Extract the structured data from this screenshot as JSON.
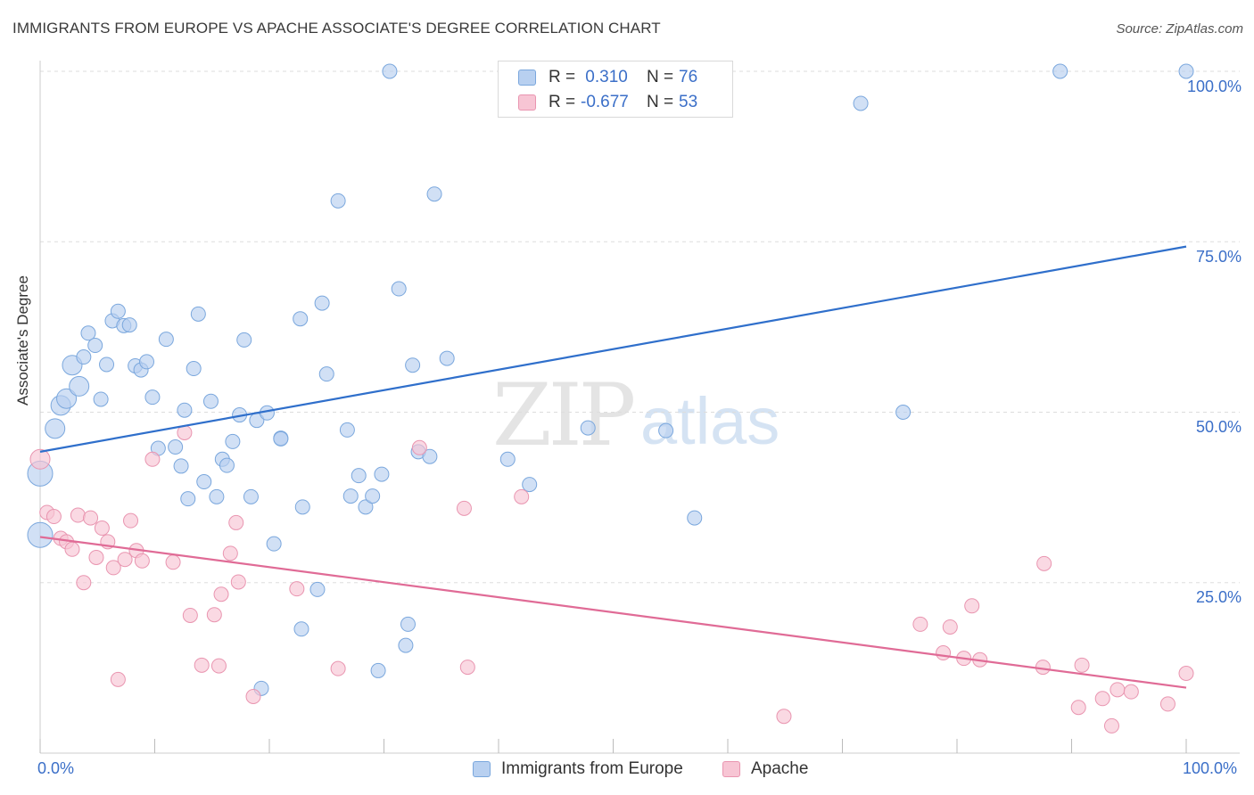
{
  "title": "IMMIGRANTS FROM EUROPE VS APACHE ASSOCIATE'S DEGREE CORRELATION CHART",
  "source": "Source: ZipAtlas.com",
  "watermark": {
    "zip": "ZIP",
    "atlas": "atlas"
  },
  "colors": {
    "blue_fill": "#b8d0f0",
    "blue_stroke": "#7aa7dd",
    "blue_line": "#2f6fcb",
    "pink_fill": "#f7c5d4",
    "pink_stroke": "#e995b0",
    "pink_line": "#e06b96",
    "grid": "#dddddd",
    "axis_text": "#3b6fc8"
  },
  "legend": {
    "rows": [
      {
        "r_label": "R =",
        "r_value": " 0.310",
        "n_label": "N =",
        "n_value": "76"
      },
      {
        "r_label": "R =",
        "r_value": "-0.677",
        "n_label": "N =",
        "n_value": "53"
      }
    ]
  },
  "chart_data": {
    "type": "scatter",
    "title": "IMMIGRANTS FROM EUROPE VS APACHE ASSOCIATE'S DEGREE CORRELATION CHART",
    "xlabel": "",
    "ylabel": "Associate's Degree",
    "xlim": [
      0,
      100
    ],
    "ylim": [
      0,
      100
    ],
    "x_tick_labels": [
      "0.0%",
      "100.0%"
    ],
    "y_tick_labels": [
      "25.0%",
      "50.0%",
      "75.0%",
      "100.0%"
    ],
    "y_ticks": [
      25,
      50,
      75,
      100
    ],
    "grid": "horizontal dashed",
    "legend_placement": "bottom-center",
    "series": [
      {
        "name": "Immigrants from Europe",
        "trend": {
          "x": [
            0,
            100
          ],
          "y": [
            44.2,
            74.3
          ]
        },
        "points": [
          [
            0,
            41.0,
            3
          ],
          [
            0,
            32.0,
            3
          ],
          [
            1.3,
            47.6,
            2
          ],
          [
            1.8,
            51.0,
            2
          ],
          [
            2.3,
            52.0,
            2
          ],
          [
            2.8,
            56.9,
            2
          ],
          [
            3.4,
            53.8,
            2
          ],
          [
            3.8,
            58.1,
            1
          ],
          [
            4.2,
            61.6,
            1
          ],
          [
            4.8,
            59.8,
            1
          ],
          [
            5.3,
            51.9,
            1
          ],
          [
            5.8,
            57.0,
            1
          ],
          [
            6.3,
            63.4,
            1
          ],
          [
            6.8,
            64.8,
            1
          ],
          [
            7.3,
            62.7,
            1
          ],
          [
            7.8,
            62.8,
            1
          ],
          [
            8.3,
            56.8,
            1
          ],
          [
            8.8,
            56.2,
            1
          ],
          [
            9.3,
            57.4,
            1
          ],
          [
            9.8,
            52.2,
            1
          ],
          [
            10.3,
            44.7,
            1
          ],
          [
            11.0,
            60.7,
            1
          ],
          [
            11.8,
            44.9,
            1
          ],
          [
            12.3,
            42.1,
            1
          ],
          [
            12.6,
            50.3,
            1
          ],
          [
            12.9,
            37.3,
            1
          ],
          [
            13.4,
            56.4,
            1
          ],
          [
            13.8,
            64.4,
            1
          ],
          [
            14.3,
            39.8,
            1
          ],
          [
            14.9,
            51.6,
            1
          ],
          [
            15.4,
            37.6,
            1
          ],
          [
            15.9,
            43.1,
            1
          ],
          [
            16.3,
            42.2,
            1
          ],
          [
            16.8,
            45.7,
            1
          ],
          [
            17.4,
            49.6,
            1
          ],
          [
            17.8,
            60.6,
            1
          ],
          [
            18.4,
            37.6,
            1
          ],
          [
            18.9,
            48.8,
            1
          ],
          [
            19.3,
            9.5,
            1
          ],
          [
            19.8,
            49.9,
            1
          ],
          [
            20.4,
            30.7,
            1
          ],
          [
            21.0,
            46.2,
            1
          ],
          [
            21.0,
            46.1,
            1
          ],
          [
            22.7,
            63.7,
            1
          ],
          [
            22.8,
            18.2,
            1
          ],
          [
            22.9,
            36.1,
            1
          ],
          [
            24.2,
            24.0,
            1
          ],
          [
            24.6,
            66.0,
            1
          ],
          [
            25.0,
            55.6,
            1
          ],
          [
            26.0,
            81.0,
            1
          ],
          [
            26.8,
            47.4,
            1
          ],
          [
            27.1,
            37.7,
            1
          ],
          [
            27.8,
            40.7,
            1
          ],
          [
            28.4,
            36.1,
            1
          ],
          [
            29.0,
            37.7,
            1
          ],
          [
            29.5,
            12.1,
            1
          ],
          [
            29.8,
            40.9,
            1
          ],
          [
            30.5,
            100.0,
            1
          ],
          [
            31.3,
            68.1,
            1
          ],
          [
            31.9,
            15.8,
            1
          ],
          [
            32.1,
            18.9,
            1
          ],
          [
            32.5,
            56.9,
            1
          ],
          [
            33.0,
            44.2,
            1
          ],
          [
            34.0,
            43.5,
            1
          ],
          [
            34.4,
            82.0,
            1
          ],
          [
            35.5,
            57.9,
            1
          ],
          [
            40.8,
            43.1,
            1
          ],
          [
            42.7,
            39.4,
            1
          ],
          [
            47.8,
            47.7,
            1
          ],
          [
            54.6,
            47.3,
            1
          ],
          [
            57.1,
            34.5,
            1
          ],
          [
            71.6,
            95.3,
            1
          ],
          [
            75.3,
            50.0,
            1
          ],
          [
            89.0,
            100.0,
            1
          ],
          [
            100.0,
            100.0,
            1
          ]
        ]
      },
      {
        "name": "Apache",
        "trend": {
          "x": [
            0,
            100
          ],
          "y": [
            31.7,
            9.6
          ]
        },
        "points": [
          [
            0,
            43.1,
            2
          ],
          [
            0.6,
            35.3,
            1
          ],
          [
            1.2,
            34.7,
            1
          ],
          [
            1.8,
            31.5,
            1
          ],
          [
            2.3,
            31.0,
            1
          ],
          [
            2.8,
            29.9,
            1
          ],
          [
            3.3,
            34.9,
            1
          ],
          [
            3.8,
            25.0,
            1
          ],
          [
            4.4,
            34.5,
            1
          ],
          [
            4.9,
            28.7,
            1
          ],
          [
            5.4,
            33.0,
            1
          ],
          [
            5.9,
            31.0,
            1
          ],
          [
            6.4,
            27.2,
            1
          ],
          [
            6.8,
            10.8,
            1
          ],
          [
            7.4,
            28.4,
            1
          ],
          [
            7.9,
            34.1,
            1
          ],
          [
            8.4,
            29.7,
            1
          ],
          [
            8.9,
            28.2,
            1
          ],
          [
            9.8,
            43.1,
            1
          ],
          [
            11.6,
            28.0,
            1
          ],
          [
            12.6,
            47.0,
            1
          ],
          [
            13.1,
            20.2,
            1
          ],
          [
            14.1,
            12.9,
            1
          ],
          [
            15.2,
            20.3,
            1
          ],
          [
            15.6,
            12.8,
            1
          ],
          [
            15.8,
            23.3,
            1
          ],
          [
            16.6,
            29.3,
            1
          ],
          [
            17.1,
            33.8,
            1
          ],
          [
            17.3,
            25.1,
            1
          ],
          [
            18.6,
            8.3,
            1
          ],
          [
            22.4,
            24.1,
            1
          ],
          [
            26.0,
            12.4,
            1
          ],
          [
            33.1,
            44.8,
            1
          ],
          [
            37.0,
            35.9,
            1
          ],
          [
            37.3,
            12.6,
            1
          ],
          [
            42.0,
            37.6,
            1
          ],
          [
            64.9,
            5.4,
            1
          ],
          [
            76.8,
            18.9,
            1
          ],
          [
            78.8,
            14.7,
            1
          ],
          [
            79.4,
            18.5,
            1
          ],
          [
            80.6,
            13.9,
            1
          ],
          [
            81.3,
            21.6,
            1
          ],
          [
            82.0,
            13.7,
            1
          ],
          [
            87.5,
            12.6,
            1
          ],
          [
            87.6,
            27.8,
            1
          ],
          [
            90.6,
            6.7,
            1
          ],
          [
            90.9,
            12.9,
            1
          ],
          [
            92.7,
            8.0,
            1
          ],
          [
            93.5,
            4.0,
            1
          ],
          [
            94.0,
            9.3,
            1
          ],
          [
            95.2,
            9.0,
            1
          ],
          [
            98.4,
            7.2,
            1
          ],
          [
            100.0,
            11.7,
            1
          ]
        ]
      }
    ]
  }
}
